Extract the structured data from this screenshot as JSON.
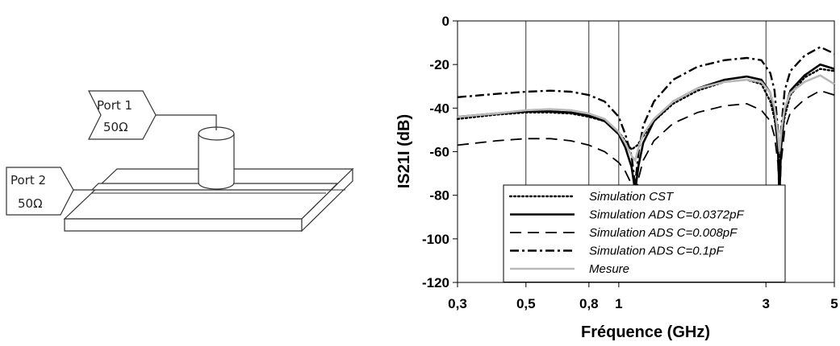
{
  "diagram": {
    "port1_label": "Port 1",
    "port1_impedance": "50Ω",
    "port2_label": "Port 2",
    "port2_impedance": "50Ω"
  },
  "chart_data": {
    "type": "line",
    "title": "",
    "xlabel": "Fréquence (GHz)",
    "ylabel": "IS21I (dB)",
    "xscale": "log",
    "xlim": [
      0.3,
      5
    ],
    "ylim": [
      -120,
      0
    ],
    "xticks": [
      0.3,
      0.5,
      0.8,
      1,
      3,
      5
    ],
    "xtick_labels": [
      "0,3",
      "0,5",
      "0,8",
      "1",
      "3",
      "5"
    ],
    "yticks": [
      0,
      -20,
      -40,
      -60,
      -80,
      -100,
      -120
    ],
    "ytick_labels": [
      "0",
      "-20",
      "-40",
      "-60",
      "-80",
      "-100",
      "-120"
    ],
    "grid": "vertical lines at 0,5 0,8 1 3",
    "legend_position": "bottom-center",
    "series": [
      {
        "name": "Simulation CST",
        "style": "dotted",
        "color": "#000000",
        "x": [
          0.3,
          0.4,
          0.5,
          0.6,
          0.7,
          0.8,
          0.9,
          1.0,
          1.05,
          1.1,
          1.15,
          1.2,
          1.3,
          1.5,
          1.8,
          2.2,
          2.6,
          2.9,
          3.1,
          3.2,
          3.3,
          3.35,
          3.45,
          3.6,
          4.0,
          4.5,
          5.0
        ],
        "y": [
          -45,
          -43,
          -42,
          -42,
          -42.5,
          -44,
          -46,
          -51,
          -55,
          -59,
          -57,
          -53,
          -46,
          -38,
          -32,
          -28,
          -27,
          -29,
          -37,
          -45,
          -58,
          -56,
          -44,
          -34,
          -26,
          -22,
          -23
        ]
      },
      {
        "name": "Simulation ADS C=0.0372pF",
        "style": "solid",
        "color": "#000000",
        "x": [
          0.3,
          0.4,
          0.5,
          0.6,
          0.7,
          0.8,
          0.9,
          1.0,
          1.05,
          1.1,
          1.13,
          1.16,
          1.2,
          1.3,
          1.5,
          1.8,
          2.2,
          2.6,
          2.9,
          3.1,
          3.2,
          3.28,
          3.32,
          3.36,
          3.45,
          3.6,
          4.0,
          4.5,
          5.0
        ],
        "y": [
          -44,
          -42.5,
          -41.5,
          -41.5,
          -42,
          -43.5,
          -46,
          -52,
          -58,
          -67,
          -78,
          -66,
          -56,
          -46,
          -37,
          -31,
          -27,
          -25.5,
          -27,
          -33,
          -42,
          -58,
          -80,
          -58,
          -41,
          -32,
          -25,
          -20,
          -22
        ]
      },
      {
        "name": "Simulation ADS C=0.008pF",
        "style": "dashed",
        "color": "#000000",
        "x": [
          0.3,
          0.4,
          0.5,
          0.6,
          0.7,
          0.8,
          0.9,
          1.0,
          1.05,
          1.1,
          1.13,
          1.16,
          1.2,
          1.3,
          1.5,
          1.8,
          2.2,
          2.6,
          2.9,
          3.1,
          3.2,
          3.28,
          3.32,
          3.36,
          3.45,
          3.6,
          4.0,
          4.5,
          5.0
        ],
        "y": [
          -57,
          -55,
          -54,
          -54,
          -55,
          -57,
          -60,
          -65,
          -69,
          -75,
          -82,
          -72,
          -64,
          -55,
          -47,
          -42,
          -39,
          -38,
          -41,
          -46,
          -53,
          -65,
          -84,
          -65,
          -50,
          -42,
          -36,
          -32,
          -34
        ]
      },
      {
        "name": "Simulation ADS C=0.1pF",
        "style": "dashdot",
        "color": "#000000",
        "x": [
          0.3,
          0.4,
          0.5,
          0.6,
          0.7,
          0.8,
          0.9,
          1.0,
          1.05,
          1.1,
          1.13,
          1.16,
          1.2,
          1.3,
          1.5,
          1.8,
          2.2,
          2.6,
          2.9,
          3.1,
          3.2,
          3.28,
          3.32,
          3.36,
          3.45,
          3.6,
          4.0,
          4.5,
          5.0
        ],
        "y": [
          -35,
          -33.5,
          -32.5,
          -32,
          -32.5,
          -34,
          -37,
          -44,
          -52,
          -62,
          -75,
          -60,
          -48,
          -37,
          -27,
          -21,
          -18,
          -17,
          -18,
          -24,
          -32,
          -50,
          -70,
          -50,
          -32,
          -23,
          -16,
          -12,
          -15
        ]
      },
      {
        "name": "Mesure",
        "style": "solid",
        "color": "#b8b8b8",
        "x": [
          0.3,
          0.4,
          0.5,
          0.6,
          0.7,
          0.8,
          0.9,
          1.0,
          1.05,
          1.1,
          1.13,
          1.16,
          1.2,
          1.3,
          1.5,
          1.8,
          2.2,
          2.6,
          2.9,
          3.1,
          3.2,
          3.27,
          3.32,
          3.37,
          3.45,
          3.6,
          4.0,
          4.5,
          5.0
        ],
        "y": [
          -44,
          -42.5,
          -41,
          -40.5,
          -41,
          -42.5,
          -45,
          -51,
          -56,
          -62,
          -64,
          -58,
          -52,
          -45,
          -37,
          -31,
          -28,
          -27,
          -28,
          -33,
          -40,
          -50,
          -60,
          -50,
          -40,
          -33,
          -28,
          -25,
          -29
        ]
      }
    ]
  }
}
